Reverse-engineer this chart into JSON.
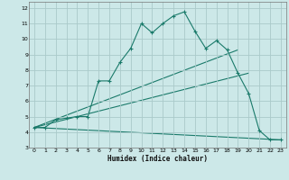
{
  "xlabel": "Humidex (Indice chaleur)",
  "background_color": "#cce8e8",
  "grid_color": "#aacaca",
  "line_color": "#1a7a6a",
  "xlim": [
    -0.5,
    23.5
  ],
  "ylim": [
    3,
    12.4
  ],
  "xticks": [
    0,
    1,
    2,
    3,
    4,
    5,
    6,
    7,
    8,
    9,
    10,
    11,
    12,
    13,
    14,
    15,
    16,
    17,
    18,
    19,
    20,
    21,
    22,
    23
  ],
  "yticks": [
    3,
    4,
    5,
    6,
    7,
    8,
    9,
    10,
    11,
    12
  ],
  "line1_x": [
    0,
    1,
    2,
    3,
    4,
    5,
    6,
    7,
    8,
    9,
    10,
    11,
    12,
    13,
    14,
    15,
    16,
    17,
    18,
    19,
    20,
    21,
    22,
    23
  ],
  "line1_y": [
    4.3,
    4.3,
    4.8,
    4.9,
    5.0,
    5.0,
    7.3,
    7.3,
    8.5,
    9.4,
    11.0,
    10.4,
    11.0,
    11.5,
    11.75,
    10.5,
    9.4,
    9.9,
    9.3,
    7.8,
    6.5,
    4.1,
    3.5,
    3.5
  ],
  "line2_x": [
    0,
    20
  ],
  "line2_y": [
    4.3,
    7.8
  ],
  "line3_x": [
    0,
    23
  ],
  "line3_y": [
    4.3,
    3.5
  ],
  "line4_x": [
    0,
    19
  ],
  "line4_y": [
    4.3,
    9.3
  ]
}
